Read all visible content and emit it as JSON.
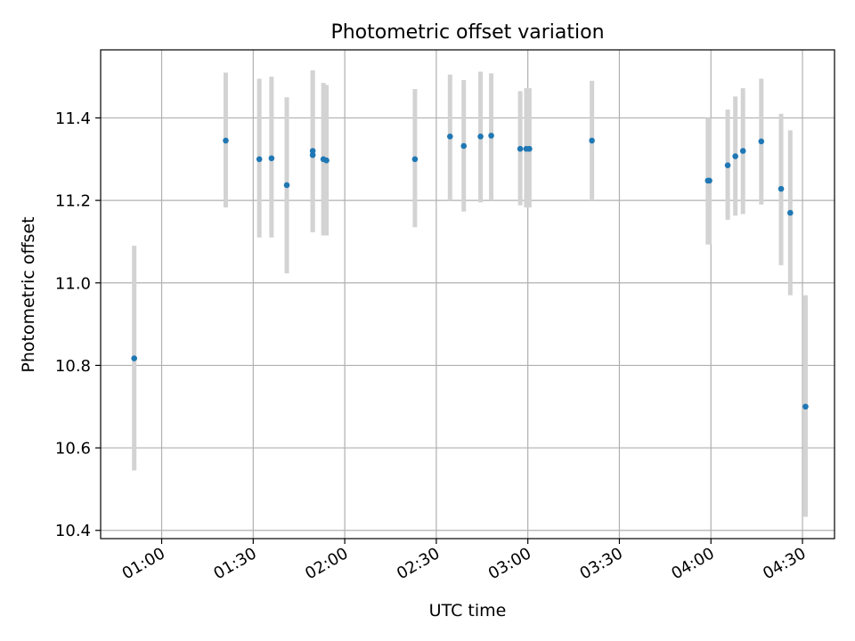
{
  "chart_data": {
    "type": "scatter",
    "title": "Photometric offset variation",
    "xlabel": "UTC time",
    "ylabel": "Photometric offset",
    "x_tick_labels": [
      "01:00",
      "01:30",
      "02:00",
      "02:30",
      "03:00",
      "03:30",
      "04:00",
      "04:30"
    ],
    "x_tick_minutes": [
      60,
      90,
      120,
      150,
      180,
      210,
      240,
      270
    ],
    "xlim_minutes": [
      40,
      280.5
    ],
    "y_tick_labels": [
      "10.4",
      "10.6",
      "10.8",
      "11.0",
      "11.2",
      "11.4"
    ],
    "y_tick_values": [
      10.4,
      10.6,
      10.8,
      11.0,
      11.2,
      11.4
    ],
    "ylim": [
      10.38,
      11.565
    ],
    "grid": true,
    "point_color": "#1f77b4",
    "errorbar_color": "#d3d3d3",
    "points": [
      {
        "time": "00:51",
        "y": 10.817,
        "lo": 10.545,
        "hi": 11.09
      },
      {
        "time": "01:21",
        "y": 11.345,
        "lo": 11.183,
        "hi": 11.51
      },
      {
        "time": "01:32",
        "y": 11.3,
        "lo": 11.11,
        "hi": 11.495
      },
      {
        "time": "01:36",
        "y": 11.302,
        "lo": 11.11,
        "hi": 11.5
      },
      {
        "time": "01:41",
        "y": 11.237,
        "lo": 11.023,
        "hi": 11.45
      },
      {
        "time": "01:49.5",
        "y": 11.32,
        "lo": 11.123,
        "hi": 11.515
      },
      {
        "time": "01:49.5",
        "y": 11.31,
        "lo": 11.123,
        "hi": 11.515
      },
      {
        "time": "01:53",
        "y": 11.3,
        "lo": 11.115,
        "hi": 11.485
      },
      {
        "time": "01:54",
        "y": 11.297,
        "lo": 11.115,
        "hi": 11.48
      },
      {
        "time": "02:23",
        "y": 11.3,
        "lo": 11.135,
        "hi": 11.47
      },
      {
        "time": "02:34.5",
        "y": 11.355,
        "lo": 11.2,
        "hi": 11.505
      },
      {
        "time": "02:39",
        "y": 11.332,
        "lo": 11.173,
        "hi": 11.492
      },
      {
        "time": "02:44.5",
        "y": 11.355,
        "lo": 11.195,
        "hi": 11.512
      },
      {
        "time": "02:48",
        "y": 11.357,
        "lo": 11.2,
        "hi": 11.508
      },
      {
        "time": "02:57.5",
        "y": 11.325,
        "lo": 11.188,
        "hi": 11.465
      },
      {
        "time": "02:59.5",
        "y": 11.325,
        "lo": 11.183,
        "hi": 11.472
      },
      {
        "time": "03:00.5",
        "y": 11.325,
        "lo": 11.183,
        "hi": 11.472
      },
      {
        "time": "03:21",
        "y": 11.345,
        "lo": 11.2,
        "hi": 11.49
      },
      {
        "time": "03:59",
        "y": 11.248,
        "lo": 11.093,
        "hi": 11.4
      },
      {
        "time": "03:59.5",
        "y": 11.248,
        "lo": 11.093,
        "hi": 11.4
      },
      {
        "time": "04:05.5",
        "y": 11.285,
        "lo": 11.153,
        "hi": 11.42
      },
      {
        "time": "04:08",
        "y": 11.307,
        "lo": 11.163,
        "hi": 11.452
      },
      {
        "time": "04:10.5",
        "y": 11.32,
        "lo": 11.167,
        "hi": 11.472
      },
      {
        "time": "04:16.5",
        "y": 11.343,
        "lo": 11.19,
        "hi": 11.495
      },
      {
        "time": "04:23",
        "y": 11.228,
        "lo": 11.043,
        "hi": 11.41
      },
      {
        "time": "04:26",
        "y": 11.17,
        "lo": 10.97,
        "hi": 11.37
      },
      {
        "time": "04:31",
        "y": 10.7,
        "lo": 10.433,
        "hi": 10.97
      }
    ]
  }
}
